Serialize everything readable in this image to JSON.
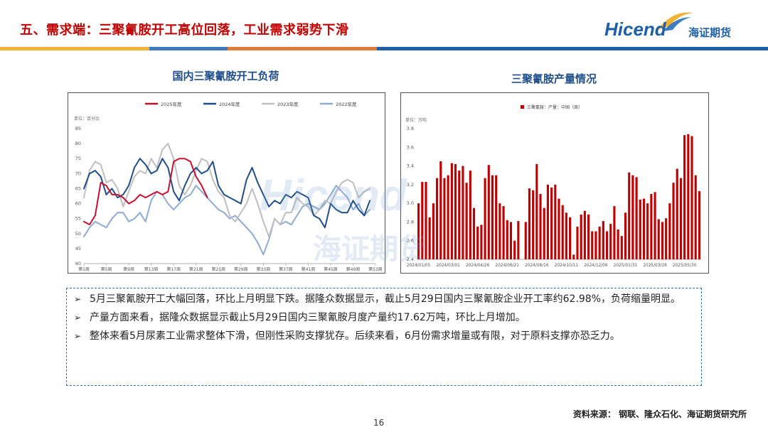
{
  "header": {
    "title": "五、需求端：三聚氰胺开工高位回落，工业需求弱势下滑",
    "logo_en": "Hicend",
    "logo_cn": "海证期货",
    "bar_colors": [
      "#f2b233",
      "#3d7cc0",
      "#e07b39",
      "#1f5fa8"
    ]
  },
  "watermark": {
    "en": "Hicend",
    "cn": "海证期货"
  },
  "chart_data": [
    {
      "type": "line",
      "title": "国内三聚氰胺开工负荷",
      "unit_label": "单位：百分比",
      "ylim": [
        40,
        85
      ],
      "yticks": [
        40,
        45,
        50,
        55,
        60,
        65,
        70,
        75,
        80,
        85
      ],
      "xticks": [
        "第1周",
        "第5周",
        "第9周",
        "第13周",
        "第17周",
        "第21周",
        "第25周",
        "第29周",
        "第33周",
        "第37周",
        "第41周",
        "第45周",
        "第49周",
        "第53周"
      ],
      "x_week_min": 1,
      "x_week_max": 53,
      "series": [
        {
          "name": "2025年度",
          "color": "#c8102e",
          "width": 2,
          "x": [
            1,
            2,
            3,
            4,
            5,
            6,
            7,
            8,
            9,
            10,
            11,
            12,
            13,
            14,
            15,
            16,
            17,
            18,
            19,
            20,
            21,
            22,
            23
          ],
          "values": [
            54,
            53,
            56,
            67,
            66,
            63,
            63,
            62,
            60,
            61,
            63,
            62,
            63,
            64,
            63,
            64,
            74,
            75,
            75,
            74,
            69,
            66,
            62
          ]
        },
        {
          "name": "2024年度",
          "color": "#1f4e8c",
          "width": 2,
          "x": [
            1,
            2,
            3,
            4,
            5,
            6,
            7,
            8,
            9,
            10,
            11,
            12,
            13,
            14,
            15,
            16,
            17,
            18,
            19,
            20,
            21,
            22,
            23,
            24,
            25,
            26,
            27,
            28,
            29,
            30,
            31,
            32,
            33,
            34,
            35,
            36,
            37,
            38,
            39,
            40,
            41,
            42,
            43,
            44,
            45,
            46,
            47,
            48,
            49,
            50,
            51,
            52
          ],
          "values": [
            65,
            70,
            71,
            69,
            63,
            65,
            62,
            63,
            66,
            72,
            75,
            73,
            70,
            71,
            75,
            72,
            64,
            61,
            66,
            70,
            72,
            70,
            71,
            74,
            66,
            63,
            62,
            61,
            60,
            68,
            72,
            67,
            63,
            59,
            61,
            60,
            63,
            62,
            64,
            63,
            62,
            56,
            55,
            52,
            60,
            58,
            57,
            57,
            61,
            58,
            56,
            61
          ]
        },
        {
          "name": "2023年度",
          "color": "#bfbfbf",
          "width": 2,
          "x": [
            1,
            2,
            3,
            4,
            5,
            6,
            7,
            8,
            9,
            10,
            11,
            12,
            13,
            14,
            15,
            16,
            17,
            18,
            19,
            20,
            21,
            22,
            23,
            24,
            25,
            26,
            27,
            28,
            29,
            30,
            31,
            32,
            33,
            34,
            35,
            36,
            37,
            38,
            39,
            40,
            41,
            42,
            43,
            44,
            45,
            46,
            47,
            48,
            49,
            50,
            51,
            52
          ],
          "values": [
            62,
            71,
            74,
            73,
            67,
            68,
            65,
            59,
            64,
            69,
            71,
            70,
            75,
            72,
            78,
            80,
            75,
            66,
            63,
            66,
            71,
            75,
            74,
            68,
            64,
            62,
            56,
            54,
            57,
            60,
            65,
            60,
            54,
            49,
            55,
            53,
            57,
            57,
            62,
            60,
            59,
            56,
            58,
            61,
            60,
            64,
            67,
            68,
            67,
            62,
            64,
            65
          ]
        },
        {
          "name": "2022年度",
          "color": "#8eaad6",
          "width": 2,
          "x": [
            1,
            2,
            3,
            4,
            5,
            6,
            7,
            8,
            9,
            10,
            11,
            12,
            13,
            14,
            15,
            16,
            17,
            18,
            19,
            20,
            21,
            22,
            23,
            24,
            25,
            26,
            27,
            28,
            29,
            30,
            31,
            32,
            33,
            34,
            35,
            36,
            37,
            38,
            39,
            40,
            41,
            42,
            43,
            44,
            45,
            46,
            47,
            48,
            49,
            50,
            51,
            52
          ],
          "values": [
            49,
            52,
            54,
            53,
            52,
            55,
            57,
            57,
            54,
            55,
            57,
            54,
            61,
            64,
            63,
            60,
            58,
            60,
            62,
            63,
            66,
            64,
            62,
            60,
            58,
            57,
            55,
            56,
            54,
            52,
            50,
            47,
            43,
            48,
            55,
            53,
            54,
            53,
            56,
            59,
            60,
            59,
            58,
            60,
            63,
            66,
            64,
            62,
            58,
            60,
            56,
            58
          ]
        }
      ]
    },
    {
      "type": "bar",
      "title": "三聚氰胺产量情况",
      "unit_label": "单位：万吨",
      "legend": [
        "三聚氰胺：产量：中国（周）"
      ],
      "color": "#c00000",
      "ylim": [
        2.4,
        3.8
      ],
      "yticks": [
        2.4,
        2.6,
        2.8,
        3.0,
        3.2,
        3.4,
        3.6,
        3.8
      ],
      "xticks": [
        "2024/01/05",
        "2024/03/01",
        "2024/04/26",
        "2024/06/21",
        "2024/08/16",
        "2024/10/11",
        "2024/12/06",
        "2025/01/31",
        "2025/03/28",
        "2025/05/30"
      ],
      "values": [
        3.0,
        3.23,
        3.23,
        2.85,
        3.0,
        3.27,
        3.45,
        3.27,
        3.3,
        3.43,
        3.42,
        3.35,
        3.4,
        3.22,
        3.35,
        2.95,
        2.75,
        2.77,
        3.27,
        3.41,
        3.3,
        3.3,
        3.0,
        2.97,
        2.82,
        2.8,
        2.6,
        2.81,
        2.4,
        2.8,
        3.16,
        3.14,
        3.42,
        3.1,
        2.95,
        3.2,
        3.17,
        3.2,
        3.05,
        2.98,
        2.9,
        2.85,
        2.45,
        2.75,
        2.88,
        2.92,
        2.88,
        2.7,
        2.7,
        2.75,
        2.81,
        2.7,
        2.78,
        2.97,
        2.72,
        2.65,
        2.9,
        3.33,
        3.3,
        3.28,
        3.04,
        3.05,
        3.0,
        3.1,
        3.12,
        2.83,
        2.8,
        2.84,
        3.0,
        3.22,
        3.37,
        3.27,
        3.73,
        3.74,
        3.72,
        3.3,
        3.13
      ]
    }
  ],
  "notes": [
    "5月三聚氰胺开工大幅回落，环比上月明显下跌。据隆众数据显示，截止5月29日国内三聚氰胺企业开工率约62.98%，负荷缩量明显。",
    "产量方面来看，据隆众数据显示截止5月29日国内三聚氰胺月度产量约17.62万吨，环比上月增加。",
    "整体来看5月尿素工业需求整体下滑，但刚性采购支撑犹存。后续来看，6月份需求增量或有限，对于原料支撑亦恐乏力。"
  ],
  "note_bullet": "➢",
  "source": "资料来源：  钢联、隆众石化、海证期货研究所",
  "page_number": "16"
}
